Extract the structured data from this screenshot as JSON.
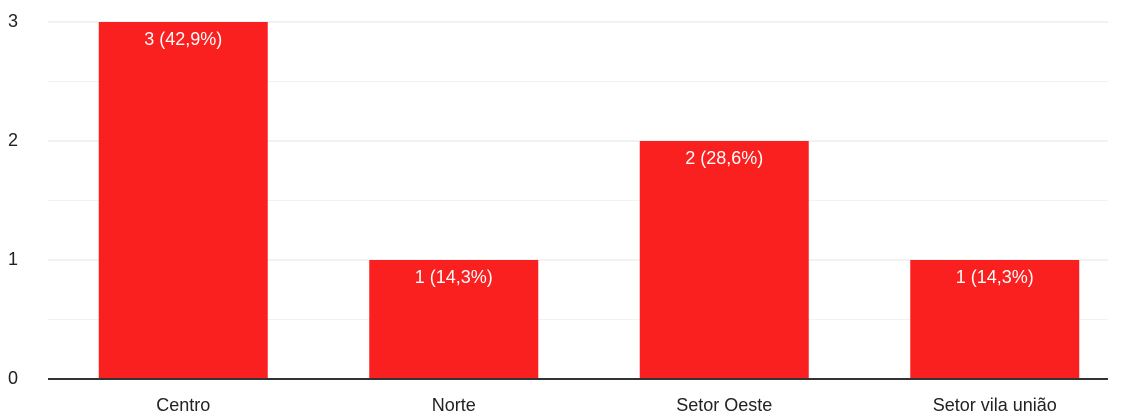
{
  "chart_data": {
    "type": "bar",
    "categories": [
      "Centro",
      "Norte",
      "Setor Oeste",
      "Setor vila união"
    ],
    "values": [
      3,
      1,
      2,
      1
    ],
    "value_labels": [
      "3 (42,9%)",
      "1 (14,3%)",
      "2 (28,6%)",
      "1 (14,3%)"
    ],
    "color": "#fb2020",
    "ylim": [
      0,
      3
    ],
    "yticks": [
      0,
      1,
      2,
      3
    ],
    "minor_yticks": [
      0.5,
      1.5,
      2.5
    ],
    "grid": true
  }
}
